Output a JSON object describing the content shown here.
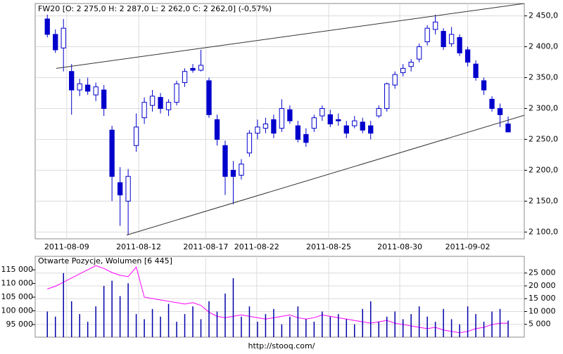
{
  "chart_data": [
    {
      "type": "candlestick",
      "title": "FW20 [O: 2 275,0  H: 2 287,0  L: 2 262,0  C: 2 262,0] (-0,57%)",
      "color": "#0000cc",
      "grid": true,
      "open": [
        2445,
        2420,
        2398,
        2360,
        2330,
        2338,
        2322,
        2330,
        2265,
        2180,
        2150,
        2240,
        2285,
        2305,
        2318,
        2298,
        2310,
        2342,
        2365,
        2362,
        2345,
        2282,
        2240,
        2200,
        2192,
        2228,
        2260,
        2268,
        2282,
        2268,
        2298,
        2272,
        2258,
        2268,
        2288,
        2290,
        2282,
        2272,
        2272,
        2278,
        2272,
        2288,
        2300,
        2338,
        2358,
        2368,
        2380,
        2408,
        2428,
        2425,
        2405,
        2415,
        2395,
        2372,
        2345,
        2315,
        2300,
        2275
      ],
      "high": [
        2452,
        2428,
        2445,
        2372,
        2348,
        2350,
        2342,
        2338,
        2272,
        2205,
        2202,
        2292,
        2318,
        2330,
        2325,
        2315,
        2345,
        2365,
        2372,
        2395,
        2350,
        2290,
        2248,
        2215,
        2218,
        2265,
        2282,
        2285,
        2290,
        2315,
        2305,
        2280,
        2268,
        2290,
        2305,
        2298,
        2292,
        2280,
        2288,
        2285,
        2280,
        2305,
        2342,
        2360,
        2372,
        2380,
        2405,
        2435,
        2452,
        2430,
        2432,
        2420,
        2400,
        2378,
        2350,
        2320,
        2308,
        2287
      ],
      "low": [
        2415,
        2390,
        2360,
        2290,
        2320,
        2322,
        2312,
        2288,
        2150,
        2110,
        2095,
        2230,
        2275,
        2295,
        2292,
        2288,
        2305,
        2335,
        2358,
        2360,
        2285,
        2240,
        2160,
        2145,
        2185,
        2222,
        2250,
        2260,
        2252,
        2262,
        2275,
        2245,
        2238,
        2262,
        2280,
        2270,
        2272,
        2252,
        2268,
        2260,
        2250,
        2285,
        2295,
        2332,
        2352,
        2360,
        2375,
        2402,
        2420,
        2395,
        2400,
        2385,
        2368,
        2345,
        2322,
        2295,
        2270,
        2262
      ],
      "close": [
        2420,
        2395,
        2430,
        2330,
        2340,
        2328,
        2335,
        2300,
        2190,
        2160,
        2190,
        2270,
        2310,
        2320,
        2300,
        2310,
        2340,
        2360,
        2362,
        2370,
        2290,
        2250,
        2190,
        2190,
        2210,
        2260,
        2270,
        2275,
        2260,
        2300,
        2280,
        2250,
        2245,
        2285,
        2300,
        2275,
        2280,
        2260,
        2280,
        2265,
        2260,
        2300,
        2340,
        2355,
        2365,
        2375,
        2400,
        2430,
        2440,
        2400,
        2420,
        2390,
        2375,
        2350,
        2330,
        2300,
        2290,
        2262
      ],
      "xlim": [
        -1.5,
        59
      ],
      "xticks": [
        {
          "value": 2.4,
          "label": "2011-08-09"
        },
        {
          "value": 11.3,
          "label": "2011-08-12"
        },
        {
          "value": 19.6,
          "label": "2011-08-17"
        },
        {
          "value": 25.9,
          "label": "2011-08-22"
        },
        {
          "value": 34.8,
          "label": "2011-08-25"
        },
        {
          "value": 43.6,
          "label": "2011-08-30"
        },
        {
          "value": 52.0,
          "label": "2011-09-02"
        }
      ],
      "ylim": [
        2089,
        2470
      ],
      "yticks": [
        {
          "value": 2100,
          "label": "2 100,0"
        },
        {
          "value": 2150,
          "label": "2 150,0"
        },
        {
          "value": 2200,
          "label": "2 200,0"
        },
        {
          "value": 2250,
          "label": "2 250,0"
        },
        {
          "value": 2300,
          "label": "2 300,0"
        },
        {
          "value": 2350,
          "label": "2 350,0"
        },
        {
          "value": 2400,
          "label": "2 400,0"
        },
        {
          "value": 2450,
          "label": "2 450,0"
        }
      ],
      "trendlines": [
        {
          "color": "#333333",
          "x": [
            1.1,
            59
          ],
          "y": [
            2365,
            2470
          ]
        },
        {
          "color": "#333333",
          "x": [
            9.8,
            59
          ],
          "y": [
            2095,
            2289
          ]
        }
      ]
    },
    {
      "type": "bar",
      "title": "Otwarte Pozycje, Wolumen [6 445]",
      "grid": true,
      "xlim": [
        -1.5,
        59
      ],
      "xticks": [
        2.4,
        11.3,
        19.6,
        25.9,
        34.8,
        43.6,
        52.0
      ],
      "ylim": [
        90400,
        119900
      ],
      "yticks": [
        {
          "value": 95000,
          "label": "95 000"
        },
        {
          "value": 100000,
          "label": "100 000"
        },
        {
          "value": 105000,
          "label": "105 000"
        },
        {
          "value": 110000,
          "label": "110 000"
        },
        {
          "value": 115000,
          "label": "115 000"
        }
      ],
      "y2lim": [
        0,
        31500
      ],
      "y2ticks": [
        {
          "value": 5000,
          "label": "5 000"
        },
        {
          "value": 10000,
          "label": "10 000"
        },
        {
          "value": 15000,
          "label": "15 000"
        },
        {
          "value": 20000,
          "label": "20 000"
        },
        {
          "value": 25000,
          "label": "25 000"
        }
      ],
      "series": [
        {
          "type": "line",
          "color": "#ff00ff",
          "values": [
            108000,
            109000,
            110500,
            112000,
            113500,
            115000,
            116500,
            115500,
            114000,
            113000,
            112500,
            116000,
            105000,
            104500,
            104000,
            103500,
            103000,
            102500,
            103000,
            102000,
            99500,
            98000,
            97500,
            98000,
            98500,
            98000,
            97500,
            97000,
            97500,
            98000,
            98500,
            97500,
            97000,
            97500,
            98500,
            98000,
            97500,
            97000,
            96500,
            96000,
            95500,
            96000,
            96500,
            95500,
            95000,
            94500,
            94000,
            93500,
            94000,
            93000,
            92500,
            92000,
            92500,
            93500,
            94000,
            95000,
            95500,
            95500
          ]
        },
        {
          "type": "bar",
          "axis": "y2",
          "color": "#0000aa",
          "values": [
            10000,
            8000,
            25000,
            14000,
            9000,
            6000,
            12000,
            20000,
            22000,
            16000,
            21000,
            9000,
            7000,
            11000,
            8000,
            13000,
            6000,
            9000,
            12000,
            7000,
            14000,
            10000,
            17000,
            23000,
            8000,
            12000,
            6000,
            9000,
            11000,
            5000,
            8000,
            12000,
            7000,
            6000,
            10000,
            8000,
            9000,
            7000,
            5000,
            11000,
            14000,
            6000,
            8000,
            10000,
            7000,
            9000,
            12000,
            8000,
            6000,
            11000,
            7000,
            5000,
            12000,
            9000,
            6000,
            10000,
            11000,
            6445
          ]
        }
      ]
    }
  ],
  "source": "http://stooq.com/"
}
